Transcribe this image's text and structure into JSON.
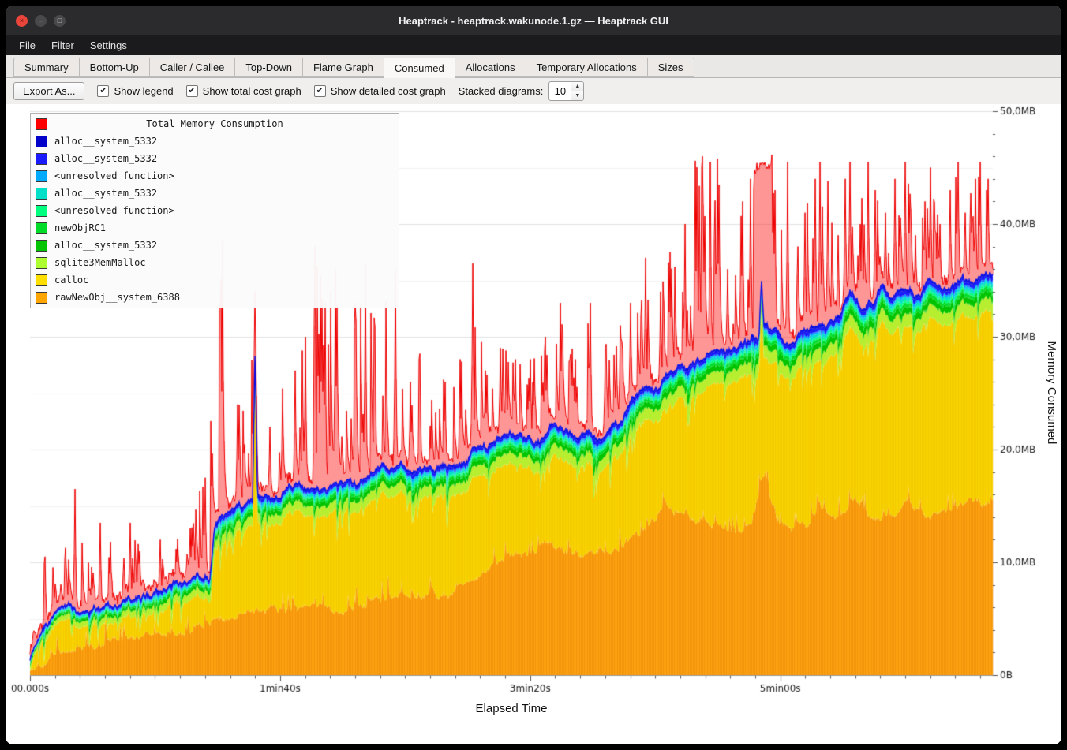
{
  "window": {
    "title": "Heaptrack - heaptrack.wakunode.1.gz — Heaptrack GUI"
  },
  "icons": {
    "close": "×",
    "minimize": "–",
    "maximize": "□",
    "check": "✔",
    "spin_up": "▲",
    "spin_down": "▼"
  },
  "menu": {
    "items": [
      {
        "mn": "F",
        "rest": "ile"
      },
      {
        "mn": "F",
        "rest": "ilter"
      },
      {
        "mn": "S",
        "rest": "ettings"
      }
    ]
  },
  "tabs": {
    "items": [
      "Summary",
      "Bottom-Up",
      "Caller / Callee",
      "Top-Down",
      "Flame Graph",
      "Consumed",
      "Allocations",
      "Temporary Allocations",
      "Sizes"
    ],
    "active": "Consumed"
  },
  "toolbar": {
    "export_label": "Export As...",
    "checkboxes": [
      {
        "label": "Show legend",
        "checked": true
      },
      {
        "label": "Show total cost graph",
        "checked": true
      },
      {
        "label": "Show detailed cost graph",
        "checked": true
      }
    ],
    "stacked_label": "Stacked diagrams:",
    "stacked_value": "10"
  },
  "legend": {
    "title": "Total Memory Consumption",
    "title_color": "#ff0000",
    "entries": [
      {
        "label": "alloc__system_5332",
        "color": "#0000c8"
      },
      {
        "label": "alloc__system_5332",
        "color": "#1a1aff"
      },
      {
        "label": "<unresolved function>",
        "color": "#00aaff"
      },
      {
        "label": "alloc__system_5332",
        "color": "#00e0c8"
      },
      {
        "label": "<unresolved function>",
        "color": "#00ff7f"
      },
      {
        "label": "newObjRC1",
        "color": "#00dc28"
      },
      {
        "label": "alloc__system_5332",
        "color": "#00c400"
      },
      {
        "label": "sqlite3MemMalloc",
        "color": "#adff2f"
      },
      {
        "label": "calloc",
        "color": "#ffdf00"
      },
      {
        "label": "rawNewObj__system_6388",
        "color": "#ffa500"
      }
    ]
  },
  "axes": {
    "y_label": "Memory Consumed",
    "x_label": "Elapsed Time"
  },
  "chart_data": {
    "type": "area",
    "title": "Total Memory Consumption",
    "xlabel": "Elapsed Time",
    "ylabel": "Memory Consumed",
    "x_unit": "s",
    "y_unit": "MB",
    "x_range": [
      0,
      385
    ],
    "y_range": [
      0,
      50
    ],
    "x_ticks": [
      {
        "t": 0,
        "label": "00.000s"
      },
      {
        "t": 100,
        "label": "1min40s"
      },
      {
        "t": 200,
        "label": "3min20s"
      },
      {
        "t": 300,
        "label": "5min00s"
      }
    ],
    "y_ticks": [
      {
        "mb": 0,
        "label": "0B"
      },
      {
        "mb": 10,
        "label": "10,0MB"
      },
      {
        "mb": 20,
        "label": "20,0MB"
      },
      {
        "mb": 30,
        "label": "30,0MB"
      },
      {
        "mb": 40,
        "label": "40,0MB"
      },
      {
        "mb": 50,
        "label": "50,0MB"
      }
    ],
    "seed": 987654321,
    "total_line_color": "#0a12e8",
    "detailed_color": "#ee0000",
    "lower_bands": [
      {
        "name": "rawNewObj__system_6388",
        "color": "#ffa30f"
      },
      {
        "name": "calloc",
        "color": "#fbd400"
      }
    ],
    "upper_bands": [
      {
        "name": "sqlite3MemMalloc",
        "fraction": 0.36,
        "color": "#b7ee2f"
      },
      {
        "name": "alloc__system_5332",
        "fraction": 0.18,
        "color": "#00c400"
      },
      {
        "name": "newObjRC1",
        "fraction": 0.1,
        "color": "#00dc28"
      },
      {
        "name": "<unresolved function>",
        "fraction": 0.07,
        "color": "#00ff7f"
      },
      {
        "name": "alloc__system_5332",
        "fraction": 0.09,
        "color": "#00e0c8"
      },
      {
        "name": "<unresolved function>",
        "fraction": 0.06,
        "color": "#00aaff"
      },
      {
        "name": "alloc__system_5332",
        "fraction": 0.1,
        "color": "#1a1aff"
      },
      {
        "name": "alloc__system_5332",
        "fraction": 0.04,
        "color": "#0000c8"
      }
    ],
    "total_mb": [
      [
        0,
        1.2
      ],
      [
        4,
        3.2
      ],
      [
        10,
        5.2
      ],
      [
        16,
        6.3
      ],
      [
        20,
        6.4
      ],
      [
        28,
        5.9
      ],
      [
        36,
        6.2
      ],
      [
        44,
        6.8
      ],
      [
        52,
        7.4
      ],
      [
        60,
        7.9
      ],
      [
        68,
        8.6
      ],
      [
        72,
        9.2
      ],
      [
        74,
        13.8
      ],
      [
        78,
        14.6
      ],
      [
        84,
        14.9
      ],
      [
        89,
        15.2
      ],
      [
        90,
        28.8
      ],
      [
        91,
        15.4
      ],
      [
        96,
        15.6
      ],
      [
        104,
        16.1
      ],
      [
        112,
        16.5
      ],
      [
        120,
        16.8
      ],
      [
        128,
        16.7
      ],
      [
        136,
        17.2
      ],
      [
        141,
        18.3
      ],
      [
        144,
        17.6
      ],
      [
        150,
        18.4
      ],
      [
        158,
        18.5
      ],
      [
        166,
        18.8
      ],
      [
        174,
        19.2
      ],
      [
        179,
        20.3
      ],
      [
        188,
        20.5
      ],
      [
        196,
        20.8
      ],
      [
        204,
        21.2
      ],
      [
        208,
        22.6
      ],
      [
        212,
        21.4
      ],
      [
        220,
        21.5
      ],
      [
        228,
        21.8
      ],
      [
        236,
        22.4
      ],
      [
        240,
        23.8
      ],
      [
        248,
        25.2
      ],
      [
        256,
        26.3
      ],
      [
        264,
        27.0
      ],
      [
        270,
        27.6
      ],
      [
        276,
        28.2
      ],
      [
        284,
        28.8
      ],
      [
        290,
        29.6
      ],
      [
        291.5,
        29.9
      ],
      [
        292.5,
        34.8
      ],
      [
        293.5,
        31.0
      ],
      [
        295,
        30.8
      ],
      [
        300,
        30.4
      ],
      [
        304,
        30.2
      ],
      [
        310,
        30.9
      ],
      [
        318,
        31.4
      ],
      [
        324,
        31.8
      ],
      [
        328,
        33.9
      ],
      [
        332,
        32.3
      ],
      [
        338,
        33.2
      ],
      [
        341,
        34.6
      ],
      [
        344,
        33.0
      ],
      [
        350,
        33.4
      ],
      [
        356,
        33.8
      ],
      [
        362,
        35.2
      ],
      [
        366,
        34.2
      ],
      [
        372,
        34.6
      ],
      [
        378,
        35.0
      ],
      [
        384,
        35.8
      ]
    ],
    "orange_top_mb": [
      [
        0,
        0.3
      ],
      [
        4,
        1.3
      ],
      [
        10,
        2.0
      ],
      [
        20,
        2.5
      ],
      [
        30,
        2.6
      ],
      [
        40,
        3.0
      ],
      [
        50,
        3.4
      ],
      [
        60,
        3.6
      ],
      [
        70,
        4.0
      ],
      [
        75,
        4.9
      ],
      [
        85,
        5.2
      ],
      [
        95,
        5.4
      ],
      [
        105,
        5.7
      ],
      [
        115,
        5.9
      ],
      [
        125,
        6.0
      ],
      [
        135,
        6.2
      ],
      [
        145,
        6.6
      ],
      [
        152,
        7.0
      ],
      [
        160,
        7.1
      ],
      [
        168,
        7.4
      ],
      [
        176,
        8.0
      ],
      [
        184,
        9.2
      ],
      [
        190,
        10.4
      ],
      [
        196,
        10.9
      ],
      [
        202,
        11.2
      ],
      [
        208,
        11.6
      ],
      [
        214,
        11.0
      ],
      [
        220,
        10.6
      ],
      [
        226,
        10.8
      ],
      [
        232,
        11.1
      ],
      [
        238,
        11.7
      ],
      [
        244,
        12.8
      ],
      [
        250,
        14.2
      ],
      [
        254,
        15.0
      ],
      [
        258,
        14.4
      ],
      [
        262,
        14.9
      ],
      [
        266,
        13.9
      ],
      [
        272,
        13.4
      ],
      [
        278,
        12.7
      ],
      [
        284,
        12.8
      ],
      [
        288,
        13.2
      ],
      [
        292,
        16.8
      ],
      [
        294,
        18.5
      ],
      [
        296,
        15.5
      ],
      [
        300,
        13.2
      ],
      [
        306,
        13.0
      ],
      [
        312,
        13.8
      ],
      [
        316,
        14.6
      ],
      [
        320,
        13.9
      ],
      [
        326,
        14.3
      ],
      [
        330,
        15.8
      ],
      [
        334,
        14.2
      ],
      [
        340,
        13.9
      ],
      [
        346,
        14.5
      ],
      [
        352,
        15.3
      ],
      [
        358,
        14.1
      ],
      [
        364,
        14.3
      ],
      [
        370,
        14.8
      ],
      [
        376,
        15.2
      ],
      [
        380,
        14.8
      ],
      [
        384,
        15.4
      ]
    ],
    "band_gap_mb": [
      [
        0,
        0.5
      ],
      [
        10,
        1.2
      ],
      [
        40,
        1.5
      ],
      [
        70,
        1.8
      ],
      [
        74,
        2.2
      ],
      [
        120,
        2.4
      ],
      [
        180,
        2.6
      ],
      [
        240,
        2.8
      ],
      [
        300,
        3.0
      ],
      [
        340,
        3.2
      ],
      [
        384,
        3.2
      ]
    ],
    "red_peaks_mb": [
      [
        0,
        4
      ],
      [
        6,
        10.5
      ],
      [
        12,
        8
      ],
      [
        18,
        16.5
      ],
      [
        24,
        9
      ],
      [
        28,
        13.5
      ],
      [
        34,
        12
      ],
      [
        40,
        13.5
      ],
      [
        46,
        11
      ],
      [
        52,
        12
      ],
      [
        58,
        12.5
      ],
      [
        64,
        13
      ],
      [
        70,
        18
      ],
      [
        74,
        27
      ],
      [
        77,
        38.5
      ],
      [
        80,
        27
      ],
      [
        84,
        24
      ],
      [
        88,
        25
      ],
      [
        90,
        34
      ],
      [
        94,
        22
      ],
      [
        100,
        25
      ],
      [
        106,
        27
      ],
      [
        110,
        30
      ],
      [
        114,
        38
      ],
      [
        118,
        33
      ],
      [
        122,
        36
      ],
      [
        126,
        30
      ],
      [
        130,
        33
      ],
      [
        134,
        36.5
      ],
      [
        138,
        31
      ],
      [
        142,
        33
      ],
      [
        146,
        36
      ],
      [
        152,
        26
      ],
      [
        156,
        28.5
      ],
      [
        160,
        25
      ],
      [
        166,
        26
      ],
      [
        172,
        28
      ],
      [
        177,
        36.5
      ],
      [
        182,
        27
      ],
      [
        188,
        29
      ],
      [
        194,
        28
      ],
      [
        200,
        28
      ],
      [
        206,
        30
      ],
      [
        212,
        33
      ],
      [
        218,
        28
      ],
      [
        224,
        33
      ],
      [
        230,
        29
      ],
      [
        236,
        31
      ],
      [
        240,
        33
      ],
      [
        246,
        37
      ],
      [
        252,
        34
      ],
      [
        256,
        37.5
      ],
      [
        260,
        34
      ],
      [
        264,
        44
      ],
      [
        266,
        45.6
      ],
      [
        270,
        46
      ],
      [
        275,
        45.8
      ],
      [
        281,
        35
      ],
      [
        285,
        42
      ],
      [
        288,
        44
      ],
      [
        290,
        45.5
      ],
      [
        293,
        46
      ],
      [
        297,
        45.5
      ],
      [
        300,
        41
      ],
      [
        303,
        45.5
      ],
      [
        306,
        38
      ],
      [
        310,
        41
      ],
      [
        314,
        44
      ],
      [
        316,
        45.5
      ],
      [
        319,
        43.5
      ],
      [
        322,
        39
      ],
      [
        326,
        44
      ],
      [
        328,
        45.5
      ],
      [
        331,
        40
      ],
      [
        335,
        45.5
      ],
      [
        338,
        43
      ],
      [
        344,
        40
      ],
      [
        348,
        44
      ],
      [
        350,
        45.5
      ],
      [
        354,
        39
      ],
      [
        358,
        42
      ],
      [
        360,
        45
      ],
      [
        364,
        40
      ],
      [
        368,
        43
      ],
      [
        371,
        45.5
      ],
      [
        374,
        41
      ],
      [
        378,
        44
      ],
      [
        380,
        45.5
      ],
      [
        384,
        42
      ]
    ],
    "red_plateaus": [
      [
        289.5,
        296.5
      ]
    ],
    "forced_spikes": [
      [
        6,
        10.5
      ],
      [
        18,
        16.5
      ],
      [
        28,
        13.5
      ],
      [
        40,
        13.5
      ],
      [
        52,
        12
      ],
      [
        64,
        13
      ],
      [
        70,
        17.5
      ],
      [
        77,
        38.5
      ],
      [
        83,
        24
      ],
      [
        90,
        34
      ],
      [
        96,
        22
      ],
      [
        101,
        25
      ],
      [
        106,
        27
      ],
      [
        110,
        30
      ],
      [
        114,
        38
      ],
      [
        118,
        33
      ],
      [
        122,
        36
      ],
      [
        130,
        33
      ],
      [
        134,
        36.5
      ],
      [
        138,
        31
      ],
      [
        146,
        36
      ],
      [
        152,
        26
      ],
      [
        156,
        28.5
      ],
      [
        166,
        26
      ],
      [
        172,
        28
      ],
      [
        177,
        36.5
      ],
      [
        182,
        27
      ],
      [
        188,
        29
      ],
      [
        194,
        28
      ],
      [
        200,
        28
      ],
      [
        206,
        30
      ],
      [
        212,
        33
      ],
      [
        218,
        28
      ],
      [
        224,
        33
      ],
      [
        230,
        29
      ],
      [
        236,
        31
      ],
      [
        240,
        33
      ],
      [
        246,
        37
      ],
      [
        252,
        34
      ],
      [
        256,
        37.5
      ],
      [
        262,
        40
      ],
      [
        266,
        45.6
      ],
      [
        269,
        46
      ],
      [
        272,
        45.5
      ],
      [
        275,
        45.8
      ],
      [
        279,
        36
      ],
      [
        285,
        42
      ],
      [
        288,
        44
      ],
      [
        298,
        43
      ],
      [
        303,
        45.5
      ],
      [
        307,
        38
      ],
      [
        310,
        41
      ],
      [
        314,
        44
      ],
      [
        316,
        45.5
      ],
      [
        319,
        43.5
      ],
      [
        323,
        39
      ],
      [
        326,
        44
      ],
      [
        328,
        45.5
      ],
      [
        332,
        40
      ],
      [
        335,
        45.5
      ],
      [
        338,
        43
      ],
      [
        342,
        41
      ],
      [
        346,
        44
      ],
      [
        350,
        45.5
      ],
      [
        354,
        39
      ],
      [
        358,
        42
      ],
      [
        360,
        45
      ],
      [
        364,
        40
      ],
      [
        368,
        43
      ],
      [
        371,
        45.5
      ],
      [
        374,
        41
      ],
      [
        378,
        44
      ],
      [
        380,
        45.5
      ],
      [
        383,
        44
      ]
    ]
  }
}
